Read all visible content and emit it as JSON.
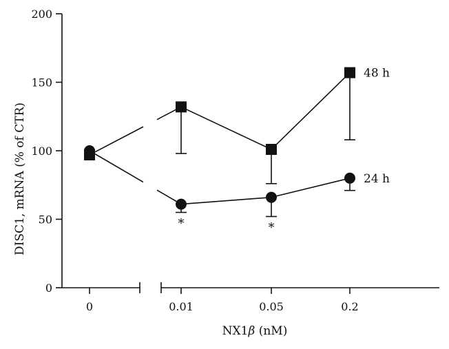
{
  "chart_data": {
    "type": "line",
    "xlabel_prefix": "NX1",
    "xlabel_symbol": "β",
    "xlabel_suffix": " (nM)",
    "ylabel": "DISC1, mRNA (% of CTR)",
    "categories": [
      "0",
      "0.01",
      "0.05",
      "0.2"
    ],
    "ylim": [
      0,
      200
    ],
    "yticks": [
      0,
      50,
      100,
      150,
      200
    ],
    "x_axis_break": true,
    "series": [
      {
        "name": "48 h",
        "marker": "square",
        "values": [
          97,
          132,
          101,
          157
        ],
        "error_bars": [
          null,
          "down",
          "down",
          "down"
        ],
        "error_ends": [
          null,
          98,
          76,
          108
        ]
      },
      {
        "name": "24 h",
        "marker": "circle",
        "values": [
          100,
          61,
          66,
          80
        ],
        "error_bars": [
          null,
          "down",
          "down",
          "down"
        ],
        "error_ends": [
          null,
          55,
          52,
          71
        ]
      }
    ],
    "annotations": [
      {
        "text": "*",
        "category": "0.01",
        "series": "24 h"
      },
      {
        "text": "*",
        "category": "0.05",
        "series": "24 h"
      }
    ],
    "grid": false,
    "legend": "inline labels at right end of each series",
    "colors": {
      "ink": "#111111"
    }
  }
}
